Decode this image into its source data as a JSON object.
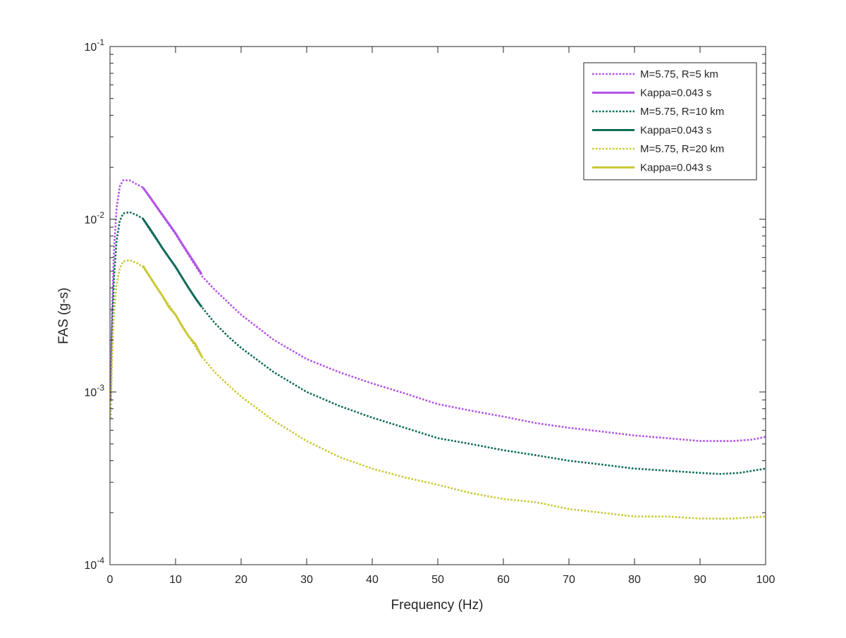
{
  "chart_data": {
    "type": "line",
    "title": "",
    "xlabel": "Frequency (Hz)",
    "ylabel": "FAS (g-s)",
    "xlim": [
      0,
      100
    ],
    "ylim": [
      0.0001,
      0.1
    ],
    "yscale": "log",
    "grid": false,
    "legend_position": "top-right",
    "x_ticks": [
      {
        "value": 0,
        "label": "0"
      },
      {
        "value": 10,
        "label": "10"
      },
      {
        "value": 20,
        "label": "20"
      },
      {
        "value": 30,
        "label": "30"
      },
      {
        "value": 40,
        "label": "40"
      },
      {
        "value": 50,
        "label": "50"
      },
      {
        "value": 60,
        "label": "60"
      },
      {
        "value": 70,
        "label": "70"
      },
      {
        "value": 80,
        "label": "80"
      },
      {
        "value": 90,
        "label": "90"
      },
      {
        "value": 100,
        "label": "100"
      }
    ],
    "y_ticks": [
      {
        "value": 0.0001,
        "base": "10",
        "exp": "-4"
      },
      {
        "value": 0.001,
        "base": "10",
        "exp": "-3"
      },
      {
        "value": 0.01,
        "base": "10",
        "exp": "-2"
      },
      {
        "value": 0.1,
        "base": "10",
        "exp": "-1"
      }
    ],
    "series": [
      {
        "name": "M=5.75, R=5 km",
        "color": "#b253e8",
        "style": "dotted",
        "points": [
          [
            0.1,
            0.0009
          ],
          [
            0.3,
            0.0028
          ],
          [
            0.6,
            0.0065
          ],
          [
            1,
            0.0115
          ],
          [
            1.5,
            0.0155
          ],
          [
            2,
            0.0168
          ],
          [
            3,
            0.0168
          ],
          [
            4,
            0.016
          ],
          [
            5,
            0.0153
          ],
          [
            6,
            0.0135
          ],
          [
            8,
            0.0105
          ],
          [
            10,
            0.0082
          ],
          [
            12,
            0.0062
          ],
          [
            14,
            0.0047
          ],
          [
            16,
            0.0039
          ],
          [
            18,
            0.0033
          ],
          [
            20,
            0.0028
          ],
          [
            25,
            0.002
          ],
          [
            30,
            0.00155
          ],
          [
            35,
            0.0013
          ],
          [
            40,
            0.00112
          ],
          [
            45,
            0.00098
          ],
          [
            50,
            0.00085
          ],
          [
            55,
            0.00078
          ],
          [
            60,
            0.00072
          ],
          [
            65,
            0.00066
          ],
          [
            70,
            0.00062
          ],
          [
            75,
            0.00059
          ],
          [
            80,
            0.00056
          ],
          [
            85,
            0.00054
          ],
          [
            90,
            0.00052
          ],
          [
            95,
            0.00052
          ],
          [
            98,
            0.00053
          ],
          [
            100,
            0.00055
          ]
        ]
      },
      {
        "name": "Kappa=0.043 s",
        "color": "#b253e8",
        "style": "solid",
        "points": [
          [
            5,
            0.0153
          ],
          [
            6,
            0.0136
          ],
          [
            7,
            0.012
          ],
          [
            8,
            0.0106
          ],
          [
            9,
            0.0094
          ],
          [
            10,
            0.0083
          ],
          [
            11,
            0.0072
          ],
          [
            12,
            0.0063
          ],
          [
            13,
            0.0055
          ],
          [
            14,
            0.0048
          ]
        ]
      },
      {
        "name": "M=5.75, R=10 km",
        "color": "#0f6b58",
        "style": "dotted",
        "points": [
          [
            0.1,
            0.0007
          ],
          [
            0.3,
            0.0022
          ],
          [
            0.6,
            0.0045
          ],
          [
            1,
            0.0075
          ],
          [
            1.5,
            0.0098
          ],
          [
            2,
            0.0108
          ],
          [
            3,
            0.011
          ],
          [
            4,
            0.0106
          ],
          [
            5,
            0.0101
          ],
          [
            6,
            0.0088
          ],
          [
            8,
            0.0068
          ],
          [
            10,
            0.0053
          ],
          [
            12,
            0.004
          ],
          [
            14,
            0.0031
          ],
          [
            16,
            0.0025
          ],
          [
            18,
            0.0021
          ],
          [
            20,
            0.0018
          ],
          [
            25,
            0.0013
          ],
          [
            30,
            0.001
          ],
          [
            35,
            0.00083
          ],
          [
            40,
            0.00071
          ],
          [
            45,
            0.00062
          ],
          [
            50,
            0.00054
          ],
          [
            55,
            0.0005
          ],
          [
            60,
            0.00046
          ],
          [
            65,
            0.00043
          ],
          [
            70,
            0.0004
          ],
          [
            75,
            0.00038
          ],
          [
            80,
            0.00036
          ],
          [
            85,
            0.00035
          ],
          [
            90,
            0.00034
          ],
          [
            93,
            0.000335
          ],
          [
            96,
            0.00034
          ],
          [
            100,
            0.00036
          ]
        ]
      },
      {
        "name": "Kappa=0.043 s",
        "color": "#0f6b58",
        "style": "solid",
        "points": [
          [
            5,
            0.0101
          ],
          [
            6,
            0.0089
          ],
          [
            7,
            0.0078
          ],
          [
            8,
            0.0068
          ],
          [
            9,
            0.006
          ],
          [
            10,
            0.0053
          ],
          [
            11,
            0.0046
          ],
          [
            12,
            0.004
          ],
          [
            13,
            0.0035
          ],
          [
            14,
            0.0031
          ]
        ]
      },
      {
        "name": "M=5.75, R=20 km",
        "color": "#c9c93a",
        "style": "dotted",
        "points": [
          [
            0.1,
            0.0007
          ],
          [
            0.3,
            0.0015
          ],
          [
            0.6,
            0.0028
          ],
          [
            1,
            0.0042
          ],
          [
            1.5,
            0.0052
          ],
          [
            2,
            0.0057
          ],
          [
            3,
            0.0058
          ],
          [
            4,
            0.0056
          ],
          [
            5,
            0.0053
          ],
          [
            6,
            0.0047
          ],
          [
            8,
            0.0036
          ],
          [
            10,
            0.0028
          ],
          [
            12,
            0.0021
          ],
          [
            14,
            0.0016
          ],
          [
            16,
            0.0013
          ],
          [
            18,
            0.0011
          ],
          [
            20,
            0.00094
          ],
          [
            25,
            0.00068
          ],
          [
            30,
            0.00052
          ],
          [
            35,
            0.00042
          ],
          [
            40,
            0.00036
          ],
          [
            45,
            0.00032
          ],
          [
            50,
            0.00029
          ],
          [
            55,
            0.00026
          ],
          [
            60,
            0.00024
          ],
          [
            65,
            0.00023
          ],
          [
            70,
            0.00021
          ],
          [
            75,
            0.0002
          ],
          [
            80,
            0.00019
          ],
          [
            85,
            0.00019
          ],
          [
            90,
            0.000185
          ],
          [
            95,
            0.000185
          ],
          [
            100,
            0.00019
          ]
        ]
      },
      {
        "name": "Kappa=0.043 s",
        "color": "#c9c93a",
        "style": "solid",
        "points": [
          [
            5,
            0.0054
          ],
          [
            6,
            0.0047
          ],
          [
            7,
            0.0041
          ],
          [
            8,
            0.0036
          ],
          [
            9,
            0.0031
          ],
          [
            10,
            0.0028
          ],
          [
            11,
            0.0024
          ],
          [
            12,
            0.0021
          ],
          [
            13,
            0.0019
          ],
          [
            14,
            0.0016
          ]
        ]
      }
    ]
  }
}
